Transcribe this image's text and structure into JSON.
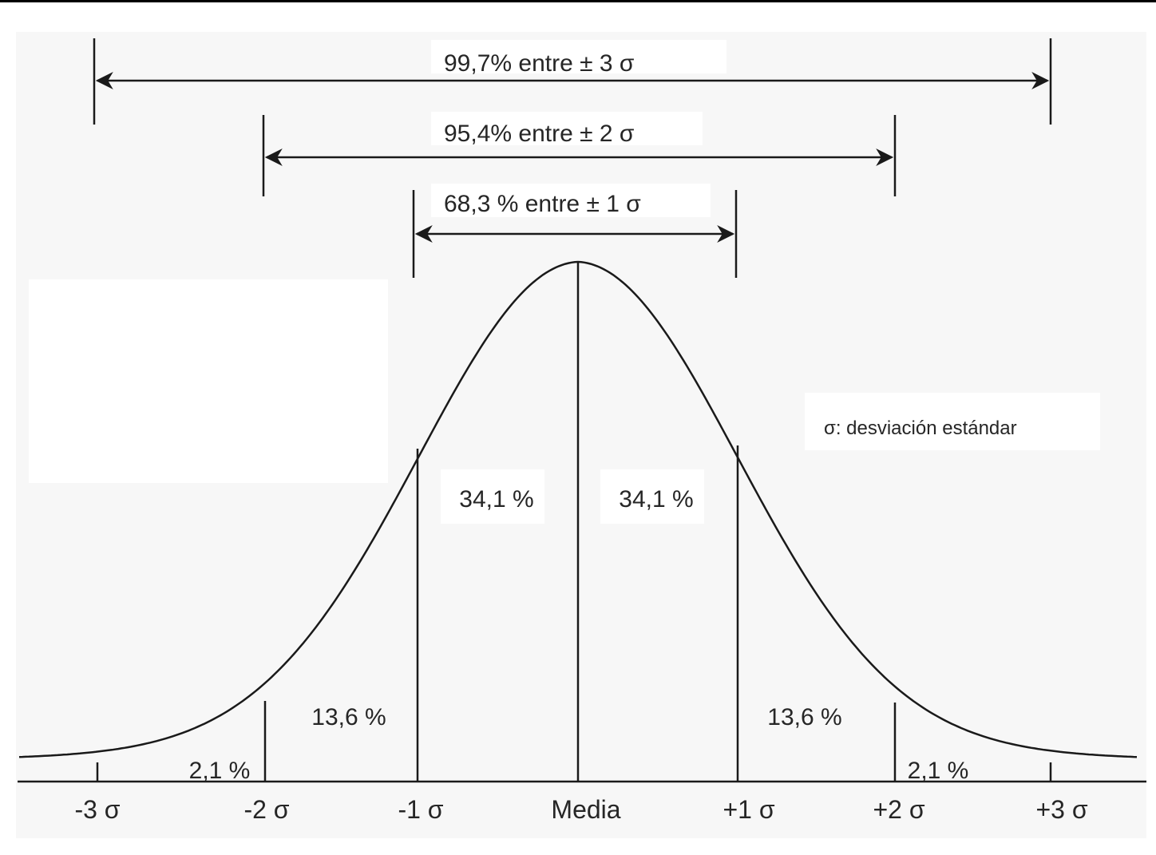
{
  "diagram": {
    "ranges": [
      {
        "label": "99,7% entre ± 3 σ",
        "sigma": 3
      },
      {
        "label": "95,4% entre ± 2 σ",
        "sigma": 2
      },
      {
        "label": "68,3 % entre ± 1 σ",
        "sigma": 1
      }
    ],
    "segments": [
      {
        "label": "2,1 %",
        "from": -3,
        "to": -2
      },
      {
        "label": "13,6 %",
        "from": -2,
        "to": -1
      },
      {
        "label": "34,1 %",
        "from": -1,
        "to": 0
      },
      {
        "label": "34,1 %",
        "from": 0,
        "to": 1
      },
      {
        "label": "13,6 %",
        "from": 1,
        "to": 2
      },
      {
        "label": "2,1 %",
        "from": 2,
        "to": 3
      }
    ],
    "axis_labels": [
      "-3 σ",
      "-2 σ",
      "-1 σ",
      "Media",
      "+1 σ",
      "+2 σ",
      "+3 σ"
    ],
    "note": "σ: desviación estándar",
    "colors": {
      "line": "#1a1a1a",
      "background": "#ffffff",
      "panel": "#f7f7f7"
    }
  }
}
